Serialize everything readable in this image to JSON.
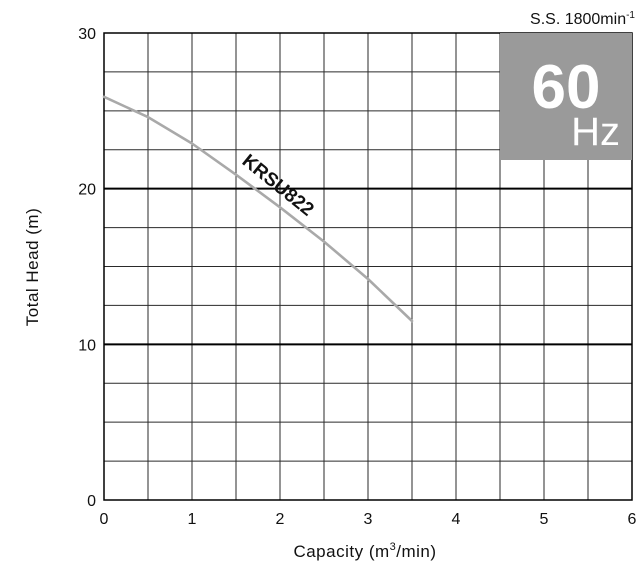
{
  "chart_data": {
    "type": "line",
    "title": "",
    "xlabel_main": "Capacity (m",
    "xlabel_sup": "3",
    "xlabel_tail": "/min)",
    "ylabel": "Total Head (m)",
    "xlim": [
      0,
      6
    ],
    "ylim": [
      0,
      30
    ],
    "x_ticks": [
      "0",
      "1",
      "2",
      "3",
      "4",
      "5",
      "6"
    ],
    "y_ticks": [
      "0",
      "10",
      "20",
      "30"
    ],
    "grid": true,
    "series": [
      {
        "name": "KRSU822",
        "color": "#a9a9a9",
        "x": [
          0,
          0.5,
          1,
          1.5,
          2,
          2.5,
          3,
          3.5
        ],
        "y": [
          25.9,
          24.6,
          22.9,
          20.9,
          18.8,
          16.6,
          14.2,
          11.5
        ]
      }
    ],
    "speed_label_main": "S.S. 1800min",
    "speed_label_sup": "-1",
    "frequency_value": "60",
    "frequency_unit": "Hz",
    "badge_color": "#9a9a9a"
  }
}
